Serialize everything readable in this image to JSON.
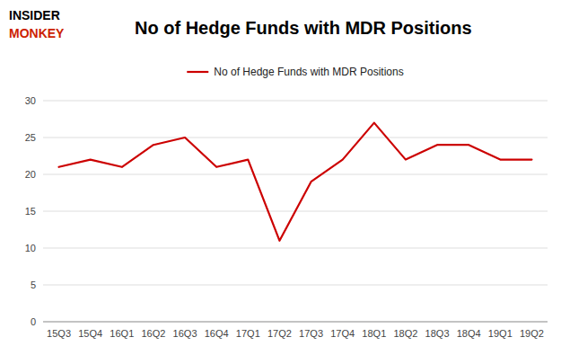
{
  "chart_data": {
    "type": "line",
    "title": "No of Hedge Funds with MDR Positions",
    "categories": [
      "15Q3",
      "15Q4",
      "16Q1",
      "16Q2",
      "16Q3",
      "16Q4",
      "17Q1",
      "17Q2",
      "17Q3",
      "17Q4",
      "18Q1",
      "18Q2",
      "18Q3",
      "18Q4",
      "19Q1",
      "19Q2"
    ],
    "series": [
      {
        "name": "No of Hedge Funds with MDR Positions",
        "color": "#cc0000",
        "values": [
          21,
          22,
          21,
          24,
          25,
          21,
          22,
          11,
          19,
          22,
          27,
          22,
          24,
          24,
          22,
          22
        ]
      }
    ],
    "ylim": [
      0,
      30
    ],
    "yticks": [
      0,
      5,
      10,
      15,
      20,
      25,
      30
    ],
    "grid": true,
    "legend": "top",
    "annotations": [
      {
        "text": "INSIDER",
        "color": "#000000"
      },
      {
        "text": "MONKEY",
        "color": "#cc2200"
      }
    ]
  }
}
